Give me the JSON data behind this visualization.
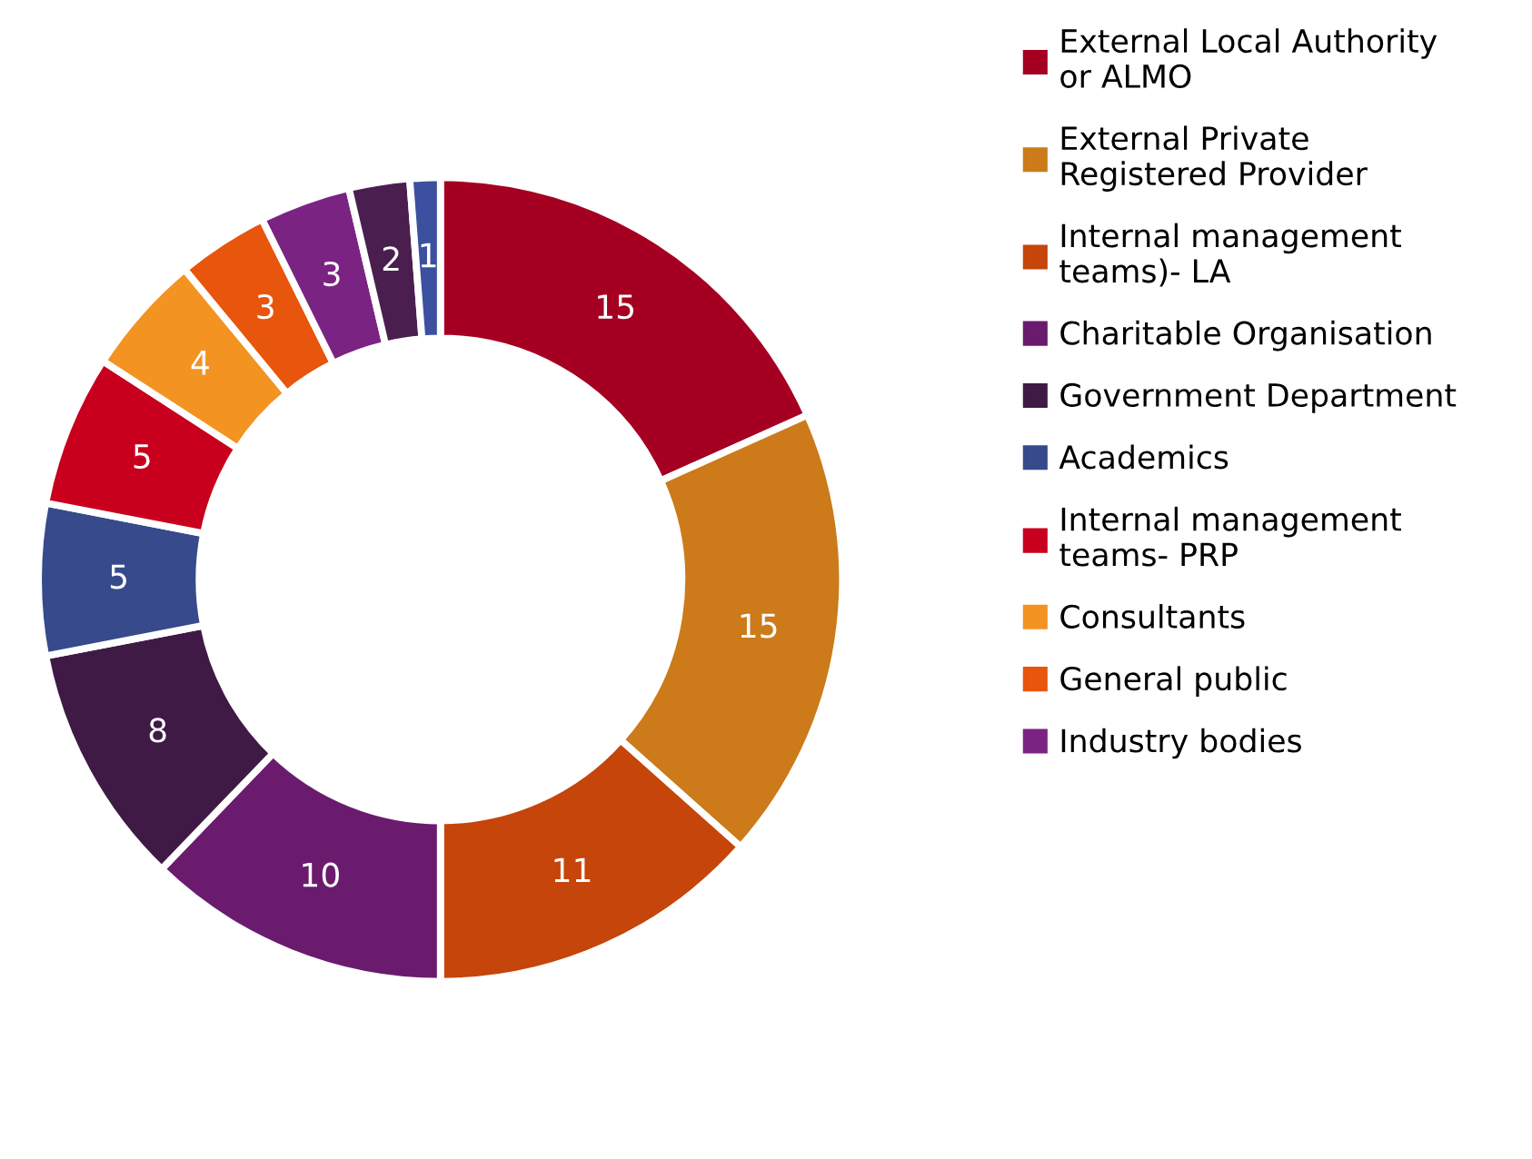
{
  "chart_data": {
    "type": "donut",
    "categories": [
      "External Local Authority\nor ALMO",
      "External Private\nRegistered Provider",
      "Internal management\nteams)- LA",
      "Charitable Organisation",
      "Government Department",
      "Academics",
      "Internal management\nteams- PRP",
      "Consultants",
      "General public",
      "Industry bodies",
      null,
      null
    ],
    "values": [
      15,
      15,
      11,
      10,
      8,
      5,
      5,
      4,
      3,
      3,
      2,
      1
    ],
    "colors": [
      "#a50021",
      "#cc7a1a",
      "#c5450a",
      "#6a1b6e",
      "#3f1a45",
      "#364a8c",
      "#c8001e",
      "#f39322",
      "#e8550c",
      "#7b2383",
      "#4a1f4f",
      "#3c50a0"
    ],
    "data_labels": true,
    "legend": "right"
  }
}
